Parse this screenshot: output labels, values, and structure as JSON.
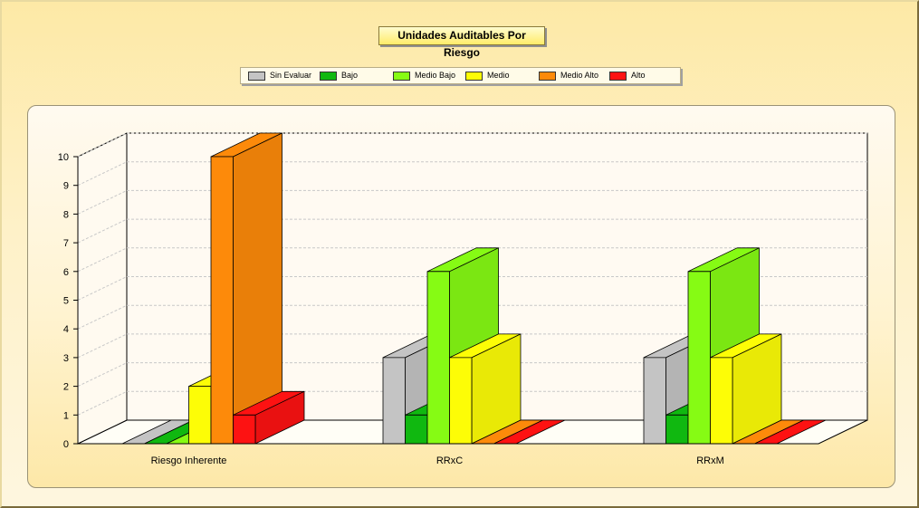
{
  "title": "Unidades Auditables Por Riesgo",
  "legend": [
    {
      "name": "Sin Evaluar",
      "color": "#c4c4c4"
    },
    {
      "name": "Bajo",
      "color": "#10b810"
    },
    {
      "name": "Medio Bajo",
      "color": "#86fb14"
    },
    {
      "name": "Medio",
      "color": "#fdfd06"
    },
    {
      "name": "Medio Alto",
      "color": "#fd8a0a"
    },
    {
      "name": "Alto",
      "color": "#fd1212"
    }
  ],
  "chart_data": {
    "type": "bar",
    "title": "Unidades Auditables Por Riesgo",
    "categories": [
      "Riesgo Inherente",
      "RRxC",
      "RRxM"
    ],
    "series": [
      {
        "name": "Sin Evaluar",
        "values": [
          0,
          3,
          3
        ]
      },
      {
        "name": "Bajo",
        "values": [
          0,
          1,
          1
        ]
      },
      {
        "name": "Medio Bajo",
        "values": [
          0,
          6,
          6
        ]
      },
      {
        "name": "Medio",
        "values": [
          2,
          3,
          3
        ]
      },
      {
        "name": "Medio Alto",
        "values": [
          10,
          0,
          0
        ]
      },
      {
        "name": "Alto",
        "values": [
          1,
          0,
          0
        ]
      }
    ],
    "ylim": [
      0,
      10
    ],
    "yticks": [
      "0",
      "1",
      "2",
      "3",
      "4",
      "5",
      "6",
      "7",
      "8",
      "9",
      "10"
    ],
    "grid": true,
    "legend_position": "top",
    "style": "3d"
  }
}
